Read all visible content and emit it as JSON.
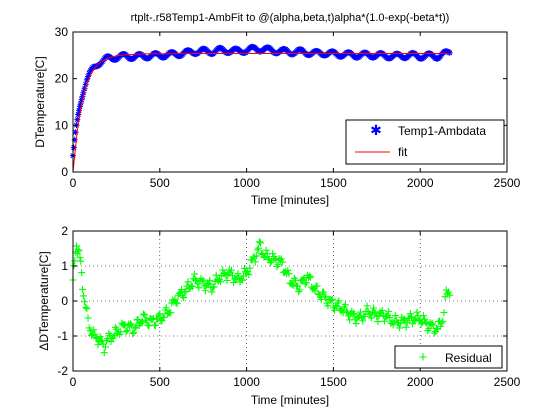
{
  "chart_data": [
    {
      "type": "scatter",
      "title": "rtplt-.r58Temp1-AmbFit to @(alpha,beta,t)alpha*(1.0-exp(-beta*t))",
      "xlabel": "Time [minutes]",
      "ylabel": "DTemperature[C]",
      "xlim": [
        0,
        2500
      ],
      "ylim": [
        0,
        30
      ],
      "xticks": [
        "0",
        "500",
        "1000",
        "1500",
        "2000",
        "2500"
      ],
      "yticks": [
        "0",
        "10",
        "20",
        "30"
      ],
      "grid": false,
      "legend_position": "bottom-right",
      "series": [
        {
          "name": "Temp1-Ambdata",
          "type": "scatter",
          "marker": "*",
          "color": "#0000ff",
          "x": [
            0,
            10,
            20,
            30,
            40,
            50,
            60,
            80,
            100,
            120,
            150,
            200,
            250,
            300,
            350,
            400,
            450,
            500,
            550,
            600,
            650,
            700,
            750,
            800,
            850,
            900,
            950,
            1000,
            1050,
            1100,
            1150,
            1200,
            1250,
            1300,
            1350,
            1400,
            1450,
            1500,
            1550,
            1600,
            1650,
            1700,
            1750,
            1800,
            1850,
            1900,
            1950,
            2000,
            2050,
            2100,
            2150,
            2170
          ],
          "y": [
            3.5,
            6.5,
            9.5,
            12,
            14.2,
            16,
            17.5,
            19.7,
            21.2,
            22.3,
            23.5,
            24.3,
            24.6,
            24.8,
            24.7,
            24.8,
            24.9,
            25,
            25.1,
            25.3,
            25.5,
            25.8,
            25.9,
            25.8,
            26.1,
            26,
            25.9,
            26.1,
            26.4,
            26.3,
            26,
            25.9,
            25.7,
            25.8,
            25.6,
            25.4,
            25.5,
            25.3,
            25.2,
            25.1,
            25,
            25.1,
            25,
            24.9,
            24.8,
            24.9,
            25,
            24.8,
            24.9,
            24.8,
            25.4,
            25.6
          ]
        },
        {
          "name": "fit",
          "type": "line",
          "color": "#ff0000",
          "x": [
            0,
            25,
            50,
            75,
            100,
            125,
            150,
            200,
            250,
            300,
            400,
            500,
            750,
            1000,
            1500,
            2000,
            2170
          ],
          "y": [
            0,
            8.9,
            14.7,
            18.4,
            20.8,
            22.3,
            23.3,
            24.4,
            24.9,
            25.1,
            25.3,
            25.35,
            25.4,
            25.4,
            25.4,
            25.4,
            25.4
          ]
        }
      ]
    },
    {
      "type": "scatter",
      "title": "",
      "xlabel": "Time [minutes]",
      "ylabel": "ΔDTemperature[C]",
      "xlim": [
        0,
        2500
      ],
      "ylim": [
        -2,
        2
      ],
      "xticks": [
        "0",
        "500",
        "1000",
        "1500",
        "2000",
        "2500"
      ],
      "yticks": [
        "-2",
        "-1",
        "0",
        "1",
        "2"
      ],
      "grid": true,
      "legend_position": "bottom-right",
      "series": [
        {
          "name": "Residual",
          "type": "scatter",
          "marker": "+",
          "color": "#00ff00",
          "x": [
            0,
            10,
            20,
            30,
            40,
            50,
            60,
            80,
            100,
            120,
            150,
            180,
            200,
            250,
            300,
            350,
            400,
            450,
            500,
            550,
            600,
            650,
            700,
            750,
            800,
            850,
            900,
            950,
            1000,
            1050,
            1080,
            1100,
            1150,
            1200,
            1250,
            1300,
            1350,
            1400,
            1450,
            1500,
            1550,
            1600,
            1650,
            1700,
            1750,
            1800,
            1850,
            1900,
            1950,
            2000,
            2050,
            2100,
            2130,
            2150,
            2170
          ],
          "y": [
            0.6,
            1.1,
            1.6,
            1.5,
            1.2,
            0.8,
            0.2,
            -0.4,
            -0.8,
            -1.0,
            -1.1,
            -1.3,
            -1.1,
            -0.9,
            -0.7,
            -0.8,
            -0.5,
            -0.6,
            -0.5,
            -0.3,
            0.1,
            0.3,
            0.6,
            0.5,
            0.4,
            0.7,
            0.8,
            0.6,
            0.8,
            1.3,
            1.6,
            1.3,
            1.2,
            1.1,
            0.6,
            0.4,
            0.7,
            0.3,
            0.1,
            -0.1,
            -0.2,
            -0.4,
            -0.5,
            -0.3,
            -0.4,
            -0.4,
            -0.6,
            -0.6,
            -0.5,
            -0.5,
            -0.7,
            -0.8,
            -0.5,
            0.2,
            0.3
          ]
        }
      ]
    }
  ]
}
